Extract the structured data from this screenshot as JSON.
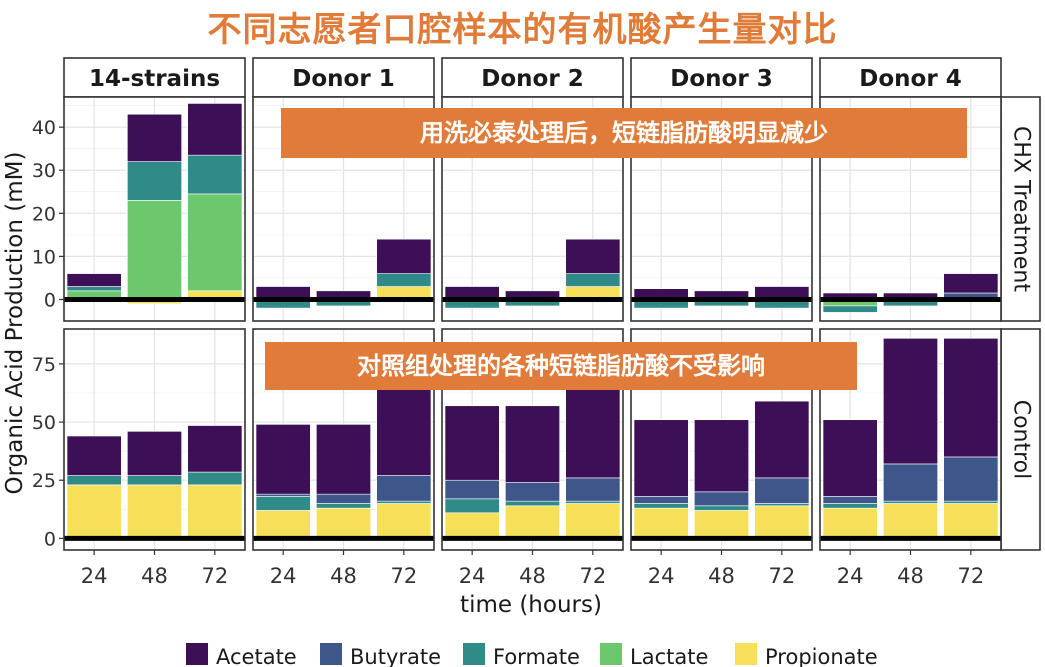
{
  "main_title": "不同志愿者口腔样本的有机酸产生量对比",
  "annotations": {
    "top": "用洗必泰处理后，短链脂肪酸明显减少",
    "bottom": "对照组处理的各种短链脂肪酸不受影响"
  },
  "colors": {
    "Acetate": "#3D0F56",
    "Butyrate": "#3E568A",
    "Formate": "#2F8A88",
    "Lactate": "#6DC76C",
    "Propionate": "#F6E05A",
    "accent": "#E07B39"
  },
  "chart_data": {
    "type": "bar",
    "stacked": true,
    "xlabel": "time (hours)",
    "ylabel": "Organic Acid Production (mM)",
    "x": [
      "24",
      "48",
      "72"
    ],
    "columns": [
      "14-strains",
      "Donor 1",
      "Donor 2",
      "Donor 3",
      "Donor 4"
    ],
    "rows": [
      "CHX Treatment",
      "Control"
    ],
    "series_order": [
      "Propionate",
      "Lactate",
      "Formate",
      "Butyrate",
      "Acetate"
    ],
    "legend": {
      "position": "bottom",
      "entries": [
        "Acetate",
        "Butyrate",
        "Formate",
        "Lactate",
        "Propionate"
      ]
    },
    "grid": true,
    "panels": {
      "CHX Treatment": {
        "ylim": [
          -5,
          47
        ],
        "yticks": [
          0,
          10,
          20,
          30,
          40
        ],
        "data": {
          "14-strains": [
            {
              "Propionate": 0.5,
              "Lactate": 1.5,
              "Formate": 1.0,
              "Butyrate": 0,
              "Acetate": 3.0
            },
            {
              "Propionate": -1.0,
              "Lactate": 23.0,
              "Formate": 9.0,
              "Butyrate": 0,
              "Acetate": 11.0
            },
            {
              "Propionate": 2.0,
              "Lactate": 22.5,
              "Formate": 9.0,
              "Butyrate": 0,
              "Acetate": 12.0
            }
          ],
          "Donor 1": [
            {
              "Propionate": 0,
              "Lactate": -0.5,
              "Formate": -1.5,
              "Butyrate": 0,
              "Acetate": 3.0
            },
            {
              "Propionate": 0,
              "Lactate": -0.5,
              "Formate": -1.0,
              "Butyrate": 0,
              "Acetate": 2.0
            },
            {
              "Propionate": 3.0,
              "Lactate": 0,
              "Formate": 3.0,
              "Butyrate": 0,
              "Acetate": 8.0
            }
          ],
          "Donor 2": [
            {
              "Propionate": 0,
              "Lactate": -0.5,
              "Formate": -1.5,
              "Butyrate": 0,
              "Acetate": 3.0
            },
            {
              "Propionate": 0,
              "Lactate": -0.5,
              "Formate": -1.0,
              "Butyrate": 0,
              "Acetate": 2.0
            },
            {
              "Propionate": 3.0,
              "Lactate": 0,
              "Formate": 3.0,
              "Butyrate": 0,
              "Acetate": 8.0
            }
          ],
          "Donor 3": [
            {
              "Propionate": 0,
              "Lactate": -0.5,
              "Formate": -1.5,
              "Butyrate": 0,
              "Acetate": 2.5
            },
            {
              "Propionate": 0,
              "Lactate": -0.5,
              "Formate": -1.0,
              "Butyrate": 0,
              "Acetate": 2.0
            },
            {
              "Propionate": 0,
              "Lactate": -0.5,
              "Formate": -1.5,
              "Butyrate": 0,
              "Acetate": 3.0
            }
          ],
          "Donor 4": [
            {
              "Propionate": 0,
              "Lactate": -1.5,
              "Formate": -1.5,
              "Butyrate": 0,
              "Acetate": 1.5
            },
            {
              "Propionate": 0,
              "Lactate": -0.5,
              "Formate": -1.0,
              "Butyrate": 0,
              "Acetate": 1.5
            },
            {
              "Propionate": 0,
              "Lactate": 0,
              "Formate": 0.5,
              "Butyrate": 1.0,
              "Acetate": 4.5
            }
          ]
        }
      },
      "Control": {
        "ylim": [
          -5,
          90
        ],
        "yticks": [
          0,
          25,
          50,
          75
        ],
        "data": {
          "14-strains": [
            {
              "Propionate": 23.0,
              "Lactate": 0,
              "Formate": 4.0,
              "Butyrate": 0,
              "Acetate": 17.0
            },
            {
              "Propionate": 23.0,
              "Lactate": 0,
              "Formate": 4.0,
              "Butyrate": 0,
              "Acetate": 19.0
            },
            {
              "Propionate": 23.0,
              "Lactate": 0,
              "Formate": 5.5,
              "Butyrate": 0,
              "Acetate": 20.0
            }
          ],
          "Donor 1": [
            {
              "Propionate": 12.0,
              "Lactate": 0,
              "Formate": 6.0,
              "Butyrate": 1.0,
              "Acetate": 30.0
            },
            {
              "Propionate": 13.0,
              "Lactate": 0,
              "Formate": 2.0,
              "Butyrate": 4.0,
              "Acetate": 30.0
            },
            {
              "Propionate": 15.0,
              "Lactate": 0,
              "Formate": 1.0,
              "Butyrate": 11.0,
              "Acetate": 40.0
            }
          ],
          "Donor 2": [
            {
              "Propionate": 11.0,
              "Lactate": 0,
              "Formate": 6.0,
              "Butyrate": 8.0,
              "Acetate": 32.0
            },
            {
              "Propionate": 14.0,
              "Lactate": 0,
              "Formate": 2.0,
              "Butyrate": 8.0,
              "Acetate": 33.0
            },
            {
              "Propionate": 15.0,
              "Lactate": 0,
              "Formate": 1.0,
              "Butyrate": 10.0,
              "Acetate": 40.0
            }
          ],
          "Donor 3": [
            {
              "Propionate": 13.0,
              "Lactate": 0,
              "Formate": 2.0,
              "Butyrate": 3.0,
              "Acetate": 33.0
            },
            {
              "Propionate": 12.0,
              "Lactate": 0,
              "Formate": 2.0,
              "Butyrate": 6.0,
              "Acetate": 31.0
            },
            {
              "Propionate": 14.0,
              "Lactate": 0,
              "Formate": 1.0,
              "Butyrate": 11.0,
              "Acetate": 33.0
            }
          ],
          "Donor 4": [
            {
              "Propionate": 13.0,
              "Lactate": 0,
              "Formate": 2.0,
              "Butyrate": 3.0,
              "Acetate": 33.0
            },
            {
              "Propionate": 15.0,
              "Lactate": 0,
              "Formate": 1.0,
              "Butyrate": 16.0,
              "Acetate": 54.0
            },
            {
              "Propionate": 15.0,
              "Lactate": 0,
              "Formate": 1.0,
              "Butyrate": 19.0,
              "Acetate": 51.0
            }
          ]
        }
      }
    }
  }
}
